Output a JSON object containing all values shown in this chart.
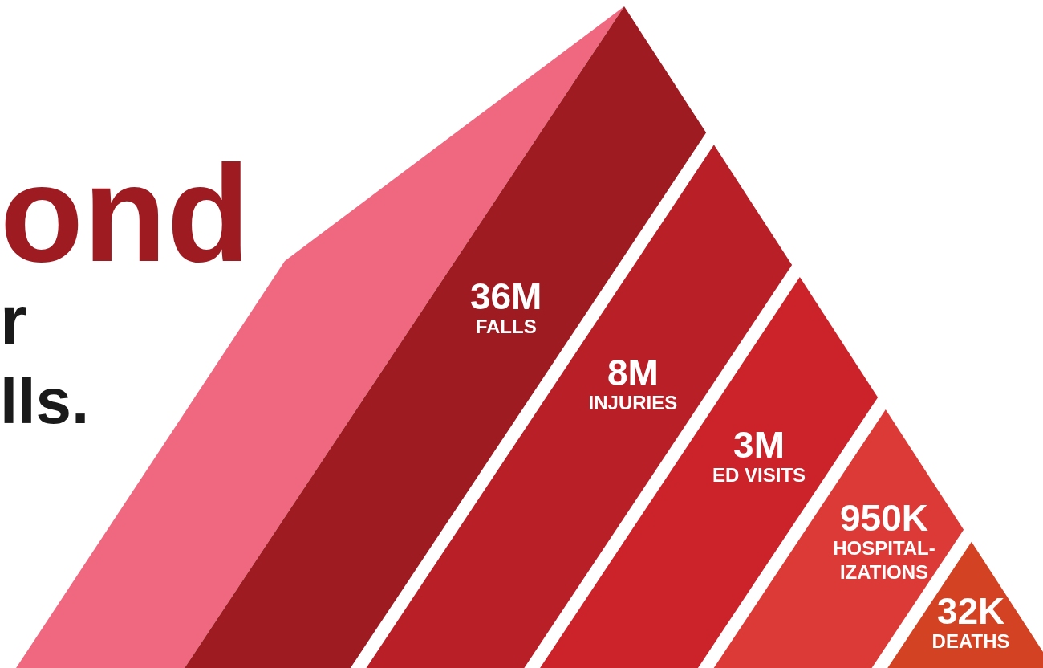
{
  "chart_data": {
    "type": "other",
    "categories": [
      "FALLS",
      "INJURIES",
      "ED VISITS",
      "HOSPITAL-\nIZATIONS",
      "DEATHS"
    ],
    "values": [
      36000000,
      8000000,
      3000000,
      950000,
      32000
    ],
    "value_labels": [
      "36M",
      "8M",
      "3M",
      "950K",
      "32K"
    ],
    "colors": [
      "#9e1b22",
      "#b81f27",
      "#cc232b",
      "#dc3a36",
      "#d24223"
    ],
    "annotations": [
      "ond",
      "r",
      "lls."
    ]
  }
}
